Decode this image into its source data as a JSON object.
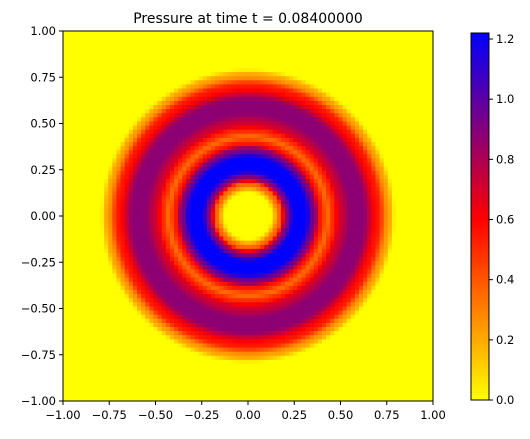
{
  "chart_data": {
    "type": "heatmap",
    "title": "Pressure at time t =     0.08400000",
    "xlabel": "",
    "ylabel": "",
    "xlim": [
      -1.0,
      1.0
    ],
    "ylim": [
      -1.0,
      1.0
    ],
    "x_ticks": [
      -1.0,
      -0.75,
      -0.5,
      -0.25,
      0.0,
      0.25,
      0.5,
      0.75,
      1.0
    ],
    "y_ticks": [
      -1.0,
      -0.75,
      -0.5,
      -0.25,
      0.0,
      0.25,
      0.5,
      0.75,
      1.0
    ],
    "x_tick_labels": [
      "−1.00",
      "−0.75",
      "−0.50",
      "−0.25",
      "0.00",
      "0.25",
      "0.50",
      "0.75",
      "1.00"
    ],
    "y_tick_labels": [
      "−1.00",
      "−0.75",
      "−0.50",
      "−0.25",
      "0.00",
      "0.25",
      "0.50",
      "0.75",
      "1.00"
    ],
    "grid": false,
    "field": {
      "description_of_values": "radially symmetric pressure field p(r), r = distance from origin",
      "radial_profile": {
        "r": [
          0.0,
          0.12,
          0.17,
          0.21,
          0.25,
          0.31,
          0.36,
          0.39,
          0.43,
          0.46,
          0.5,
          0.56,
          0.62,
          0.7,
          0.76,
          0.8,
          1.42
        ],
        "p": [
          0.0,
          0.0,
          0.35,
          0.9,
          1.22,
          1.22,
          0.9,
          0.55,
          0.35,
          0.5,
          0.72,
          0.88,
          0.88,
          0.55,
          0.22,
          0.0,
          0.0
        ]
      },
      "grid_size": 90
    },
    "colorbar": {
      "vmin": 0.0,
      "vmax": 1.22,
      "ticks": [
        0.0,
        0.2,
        0.4,
        0.6,
        0.8,
        1.0,
        1.2
      ],
      "tick_labels": [
        "0.0",
        "0.2",
        "0.4",
        "0.6",
        "0.8",
        "1.0",
        "1.2"
      ],
      "colormap_stops": [
        {
          "value": 0.0,
          "color": "#ffff00"
        },
        {
          "value": 0.6,
          "color": "#ff0000"
        },
        {
          "value": 1.22,
          "color": "#0000ff"
        }
      ]
    }
  }
}
